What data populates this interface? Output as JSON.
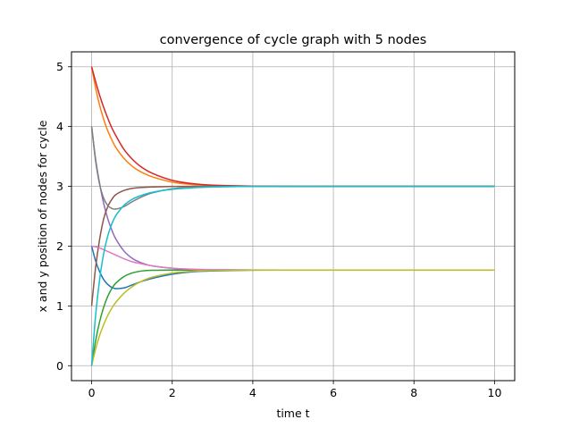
{
  "chart_data": {
    "type": "line",
    "title": "convergence of cycle graph with 5 nodes",
    "xlabel": "time t",
    "ylabel": "x and y position of nodes for cycle",
    "xlim": [
      -0.5,
      10.5
    ],
    "ylim": [
      -0.25,
      5.25
    ],
    "xticks": [
      0,
      2,
      4,
      6,
      8,
      10
    ],
    "yticks": [
      0,
      1,
      2,
      3,
      4,
      5
    ],
    "grid": true,
    "series": [
      {
        "color": "#1f77b4",
        "x": [
          0,
          0.1,
          0.2,
          0.3,
          0.4,
          0.5,
          0.6,
          0.8,
          1.0,
          1.2,
          1.5,
          2.0,
          2.5,
          3.0,
          4.0,
          5.0,
          6.0,
          8.0,
          10.0
        ],
        "y": [
          2.0,
          1.75,
          1.57,
          1.44,
          1.36,
          1.31,
          1.29,
          1.3,
          1.35,
          1.4,
          1.46,
          1.53,
          1.57,
          1.585,
          1.598,
          1.6,
          1.6,
          1.6,
          1.6
        ]
      },
      {
        "color": "#ff7f0e",
        "x": [
          0,
          0.1,
          0.2,
          0.3,
          0.4,
          0.5,
          0.6,
          0.8,
          1.0,
          1.2,
          1.5,
          2.0,
          2.5,
          3.0,
          4.0,
          5.0,
          6.0,
          8.0,
          10.0
        ],
        "y": [
          5.0,
          4.64,
          4.35,
          4.12,
          3.93,
          3.78,
          3.65,
          3.47,
          3.34,
          3.25,
          3.16,
          3.07,
          3.03,
          3.015,
          3.003,
          3.0,
          3.0,
          3.0,
          3.0
        ]
      },
      {
        "color": "#2ca02c",
        "x": [
          0,
          0.1,
          0.2,
          0.3,
          0.4,
          0.5,
          0.6,
          0.8,
          1.0,
          1.2,
          1.5,
          2.0,
          2.5,
          3.0,
          4.0,
          5.0,
          6.0,
          8.0,
          10.0
        ],
        "y": [
          0.0,
          0.42,
          0.74,
          0.98,
          1.16,
          1.29,
          1.38,
          1.49,
          1.55,
          1.58,
          1.595,
          1.6,
          1.6,
          1.6,
          1.6,
          1.6,
          1.6,
          1.6,
          1.6
        ]
      },
      {
        "color": "#d62728",
        "x": [
          0,
          0.1,
          0.2,
          0.3,
          0.4,
          0.5,
          0.6,
          0.8,
          1.0,
          1.2,
          1.5,
          2.0,
          2.5,
          3.0,
          4.0,
          5.0,
          6.0,
          8.0,
          10.0
        ],
        "y": [
          5.0,
          4.75,
          4.52,
          4.32,
          4.14,
          3.98,
          3.85,
          3.62,
          3.46,
          3.34,
          3.22,
          3.1,
          3.045,
          3.02,
          3.004,
          3.0,
          3.0,
          3.0,
          3.0
        ]
      },
      {
        "color": "#9467bd",
        "x": [
          0,
          0.1,
          0.2,
          0.3,
          0.4,
          0.5,
          0.6,
          0.8,
          1.0,
          1.2,
          1.5,
          2.0,
          2.5,
          3.0,
          4.0,
          5.0,
          6.0,
          8.0,
          10.0
        ],
        "y": [
          4.0,
          3.45,
          3.04,
          2.71,
          2.46,
          2.27,
          2.12,
          1.92,
          1.8,
          1.73,
          1.67,
          1.63,
          1.61,
          1.605,
          1.6,
          1.6,
          1.6,
          1.6,
          1.6
        ]
      },
      {
        "color": "#8c564b",
        "x": [
          0,
          0.1,
          0.2,
          0.3,
          0.4,
          0.5,
          0.6,
          0.8,
          1.0,
          1.2,
          1.5,
          2.0,
          2.5,
          3.0,
          4.0,
          5.0,
          6.0,
          8.0,
          10.0
        ],
        "y": [
          1.0,
          1.65,
          2.12,
          2.46,
          2.66,
          2.78,
          2.86,
          2.93,
          2.965,
          2.98,
          2.99,
          2.998,
          3.0,
          3.0,
          3.0,
          3.0,
          3.0,
          3.0,
          3.0
        ]
      },
      {
        "color": "#e377c2",
        "x": [
          0,
          0.1,
          0.2,
          0.3,
          0.4,
          0.5,
          0.6,
          0.8,
          1.0,
          1.2,
          1.5,
          2.0,
          2.5,
          3.0,
          4.0,
          5.0,
          6.0,
          8.0,
          10.0
        ],
        "y": [
          2.0,
          1.99,
          1.97,
          1.94,
          1.91,
          1.88,
          1.85,
          1.79,
          1.74,
          1.71,
          1.67,
          1.63,
          1.615,
          1.607,
          1.601,
          1.6,
          1.6,
          1.6,
          1.6
        ]
      },
      {
        "color": "#7f7f7f",
        "x": [
          0,
          0.1,
          0.2,
          0.3,
          0.4,
          0.5,
          0.6,
          0.8,
          1.0,
          1.2,
          1.5,
          2.0,
          2.5,
          3.0,
          4.0,
          5.0,
          6.0,
          8.0,
          10.0
        ],
        "y": [
          4.0,
          3.42,
          3.03,
          2.8,
          2.68,
          2.63,
          2.62,
          2.66,
          2.74,
          2.81,
          2.89,
          2.96,
          2.985,
          2.995,
          3.0,
          3.0,
          3.0,
          3.0,
          3.0
        ]
      },
      {
        "color": "#bcbd22",
        "x": [
          0,
          0.1,
          0.2,
          0.3,
          0.4,
          0.5,
          0.6,
          0.8,
          1.0,
          1.2,
          1.5,
          2.0,
          2.5,
          3.0,
          4.0,
          5.0,
          6.0,
          8.0,
          10.0
        ],
        "y": [
          0.0,
          0.28,
          0.51,
          0.69,
          0.84,
          0.96,
          1.06,
          1.21,
          1.32,
          1.4,
          1.48,
          1.55,
          1.58,
          1.592,
          1.599,
          1.6,
          1.6,
          1.6,
          1.6
        ]
      },
      {
        "color": "#17becf",
        "x": [
          0,
          0.1,
          0.2,
          0.3,
          0.4,
          0.5,
          0.6,
          0.8,
          1.0,
          1.2,
          1.5,
          2.0,
          2.5,
          3.0,
          4.0,
          5.0,
          6.0,
          8.0,
          10.0
        ],
        "y": [
          0.0,
          0.85,
          1.45,
          1.88,
          2.17,
          2.37,
          2.51,
          2.68,
          2.78,
          2.84,
          2.9,
          2.95,
          2.975,
          2.99,
          2.998,
          3.0,
          3.0,
          3.0,
          3.0
        ]
      }
    ]
  }
}
